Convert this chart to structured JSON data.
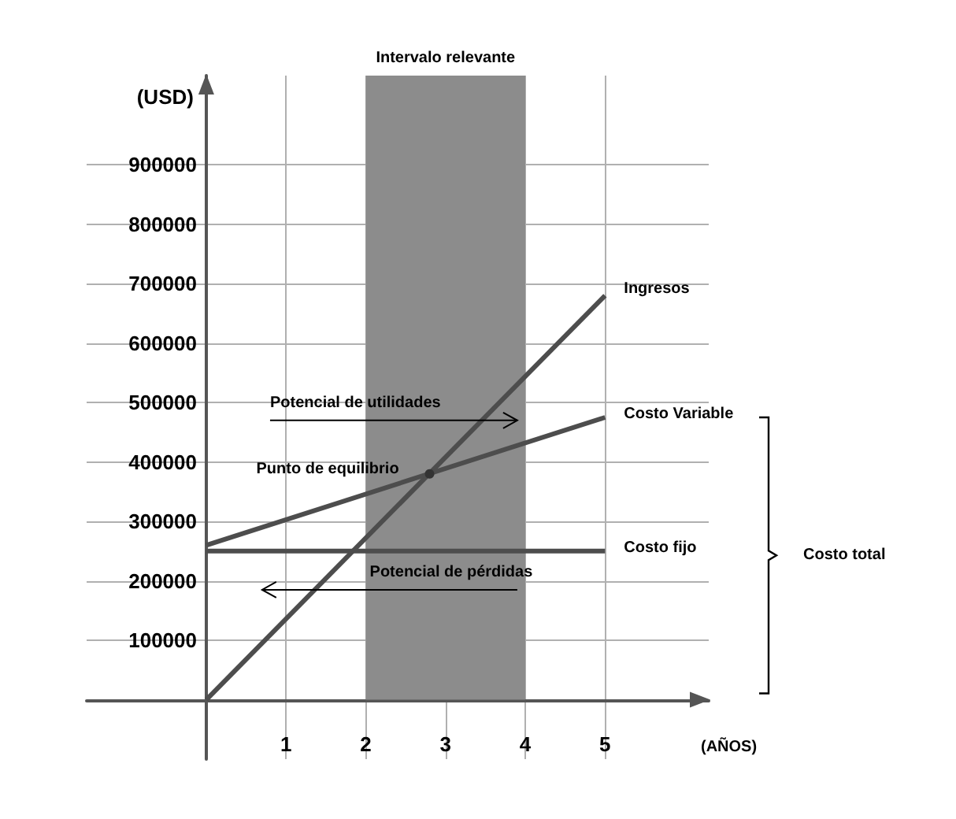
{
  "chart_data": {
    "type": "line",
    "xlabel": "(AÑOS)",
    "ylabel": "(USD)",
    "xlim": [
      -1.5,
      6.3
    ],
    "ylim": [
      -100000,
      1050000
    ],
    "xticks": [
      1,
      2,
      3,
      4,
      5
    ],
    "x": [
      0,
      5
    ],
    "yticks": [
      100000,
      200000,
      300000,
      400000,
      500000,
      600000,
      700000,
      800000,
      900000
    ],
    "grid": true,
    "legend": false,
    "line_style": "solid",
    "marker": "none",
    "series": [
      {
        "name": "Ingresos",
        "color": "#4d4d4d",
        "values": [
          0,
          680000
        ]
      },
      {
        "name": "Costo Variable",
        "color": "#4d4d4d",
        "values": [
          260000,
          475000
        ]
      },
      {
        "name": "Costo fijo",
        "color": "#4d4d4d",
        "values": [
          250000,
          250000
        ]
      }
    ],
    "bands": [
      {
        "axis": "x",
        "from": 2,
        "to": 4,
        "label": "Intervalo relevante",
        "color": "#8c8c8c"
      }
    ],
    "annotations": [
      {
        "text": "Punto de equilibrio",
        "x": 2.8,
        "y": 380000
      },
      "Potencial de utilidades",
      "Potencial de pérdidas",
      "Costo total"
    ]
  }
}
